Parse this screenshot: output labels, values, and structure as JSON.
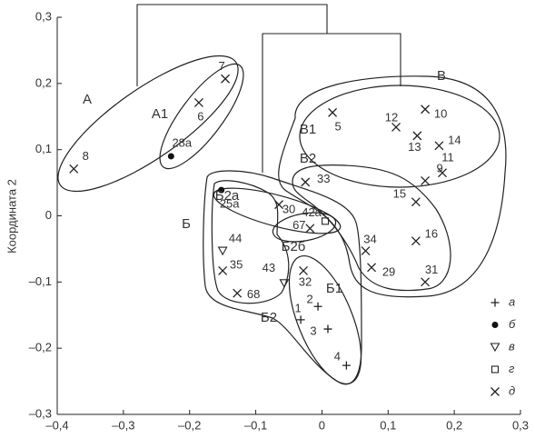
{
  "chart_data": {
    "type": "scatter",
    "y_label": "Координата 2",
    "xlim": [
      -0.4,
      0.3
    ],
    "ylim": [
      -0.3,
      0.3
    ],
    "xticks": [
      {
        "value": -0.4,
        "label": "–0,4"
      },
      {
        "value": -0.3,
        "label": "–0,3"
      },
      {
        "value": -0.2,
        "label": "–0,2"
      },
      {
        "value": -0.1,
        "label": "–0,1"
      },
      0,
      {
        "value": 0.1,
        "label": "0,1"
      },
      {
        "value": 0.2,
        "label": "0,2"
      },
      {
        "value": 0.3,
        "label": "0,3"
      }
    ],
    "yticks": [
      {
        "value": -0.3,
        "label": "–0,3"
      },
      {
        "value": -0.2,
        "label": "–0,2"
      },
      {
        "value": -0.1,
        "label": "–0,1"
      },
      0,
      {
        "value": 0.1,
        "label": "0,1"
      },
      {
        "value": 0.2,
        "label": "0,2"
      },
      {
        "value": 0.3,
        "label": "0,3"
      }
    ],
    "legend": "lower right",
    "series": [
      {
        "name": "а",
        "marker": "plus",
        "color": "#222",
        "labels": [
          "2",
          "1",
          "3",
          "4"
        ],
        "x": [
          -0.006,
          -0.032,
          0.009,
          0.037
        ],
        "y": [
          -0.137,
          -0.157,
          -0.171,
          -0.226
        ]
      },
      {
        "name": "б",
        "marker": "dot",
        "color": "#111",
        "labels": [
          "28а",
          "25а"
        ],
        "x": [
          -0.228,
          -0.152
        ],
        "y": [
          0.09,
          0.039
        ]
      },
      {
        "name": "в",
        "marker": "triangle",
        "color": "#222",
        "labels": [
          "44",
          "43"
        ],
        "x": [
          -0.15,
          -0.057
        ],
        "y": [
          -0.053,
          -0.102
        ]
      },
      {
        "name": "г",
        "marker": "square",
        "color": "#222",
        "labels": [
          "42а"
        ],
        "x": [
          0.005
        ],
        "y": [
          -0.008
        ]
      },
      {
        "name": "д",
        "marker": "cross",
        "color": "#222",
        "labels": [
          "8",
          "7",
          "6",
          "5",
          "12",
          "10",
          "13",
          "14",
          "11",
          "9",
          "33",
          "15",
          "16",
          "34",
          "29",
          "31",
          "30",
          "67",
          "35",
          "68",
          "32"
        ],
        "x": [
          -0.375,
          -0.146,
          -0.186,
          0.016,
          0.112,
          0.156,
          0.144,
          0.177,
          0.182,
          0.156,
          -0.025,
          0.142,
          0.142,
          0.066,
          0.075,
          0.156,
          -0.065,
          -0.018,
          -0.15,
          -0.128,
          -0.028
        ],
        "y": [
          0.071,
          0.207,
          0.171,
          0.156,
          0.134,
          0.161,
          0.121,
          0.106,
          0.065,
          0.053,
          0.051,
          0.021,
          -0.038,
          -0.053,
          -0.078,
          -0.1,
          0.017,
          -0.019,
          -0.083,
          -0.117,
          -0.083
        ]
      }
    ],
    "annotations": [
      "А",
      "А1",
      "Б",
      "Б1",
      "Б2",
      "Б2а",
      "Б2б",
      "В",
      "В1",
      "В2"
    ]
  }
}
